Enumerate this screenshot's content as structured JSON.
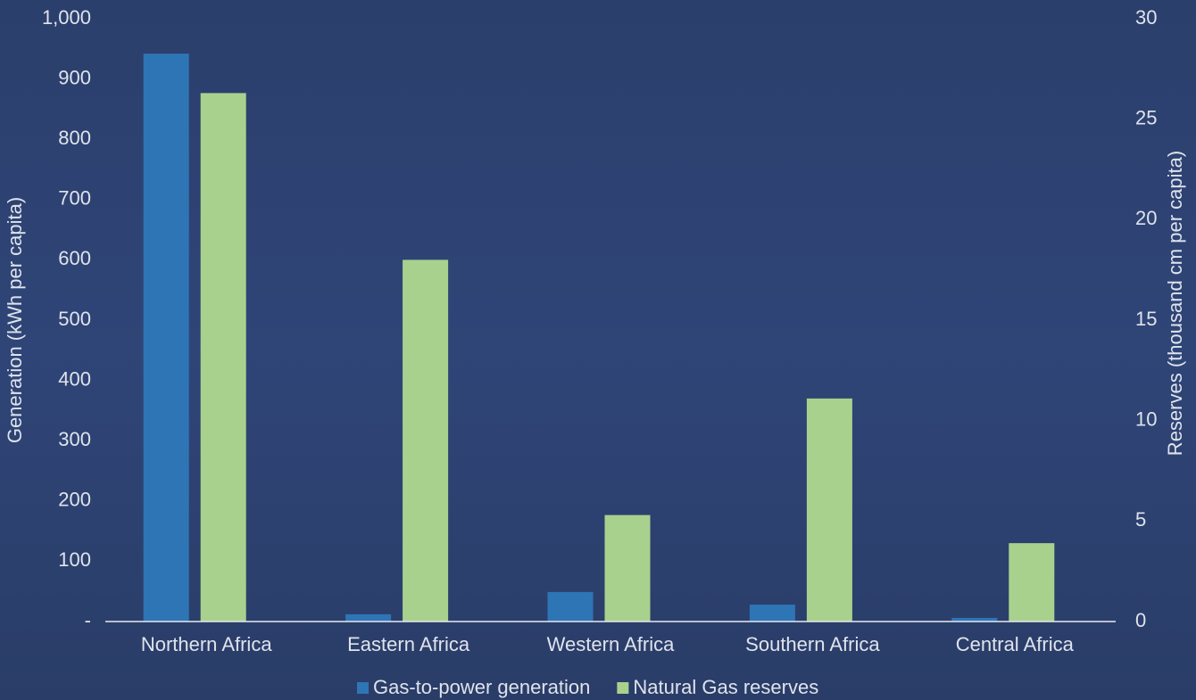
{
  "chart_data": {
    "type": "bar",
    "categories": [
      "Northern Africa",
      "Eastern Africa",
      "Western Africa",
      "Southern Africa",
      "Central Africa"
    ],
    "series": [
      {
        "name": "Gas-to-power generation",
        "color": "#2e75b6",
        "values": [
          942,
          12,
          49,
          28,
          6
        ]
      },
      {
        "name": "Natural Gas reserves",
        "color": "#a9d18e",
        "axis": "y2",
        "values": [
          26.3,
          18.0,
          5.3,
          11.1,
          3.9
        ]
      }
    ],
    "y_label": "Generation (kWh per capita)",
    "y2_label": "Reserves (thousand cm per capita)",
    "ylim": [
      0,
      1000
    ],
    "yticks": [
      {
        "value": 0,
        "label": "-"
      },
      100,
      200,
      300,
      400,
      500,
      600,
      700,
      800,
      900,
      {
        "value": 1000,
        "label": "1,000"
      }
    ],
    "y2lim": [
      0,
      30
    ],
    "y2ticks": [
      0,
      5,
      10,
      15,
      20,
      25,
      30
    ],
    "legend": "bottom"
  }
}
